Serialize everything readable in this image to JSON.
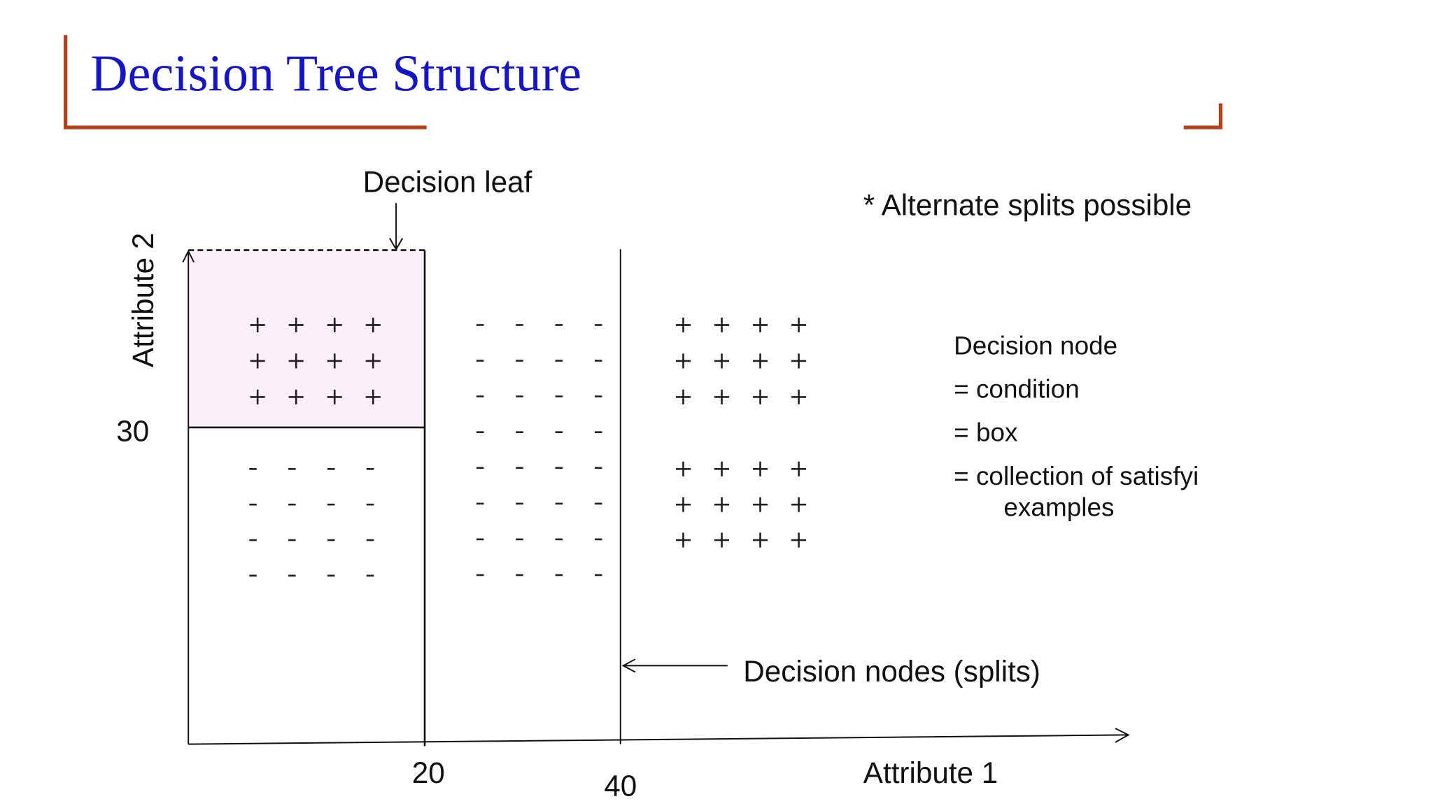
{
  "slide": {
    "title": "Decision Tree Structure",
    "title_color": "#1414c8",
    "accent_color": "#b5401a"
  },
  "diagram": {
    "leaf_label": "Decision leaf",
    "note": "* Alternate splits possible",
    "y_axis_label": "Attribute 2",
    "x_axis_label": "Attribute 1",
    "y_tick": "30",
    "x_ticks": [
      "20",
      "40"
    ],
    "splits_label": "Decision nodes (splits)",
    "leaf_fill": "#fcf0fa",
    "node_definition": {
      "heading": "Decision node",
      "lines": [
        "= condition",
        "= box",
        "= collection of satisfyi",
        "examples"
      ]
    },
    "regions": [
      {
        "name": "leaf-region",
        "symbol": "+",
        "rows": 3,
        "cols": 4
      },
      {
        "name": "lower-left-region",
        "symbol": "-",
        "rows": 4,
        "cols": 4
      },
      {
        "name": "middle-region",
        "symbol": "-",
        "rows": 8,
        "cols": 4
      },
      {
        "name": "right-upper-region",
        "symbol": "+",
        "rows": 3,
        "cols": 4
      },
      {
        "name": "right-lower-region",
        "symbol": "+",
        "rows": 3,
        "cols": 4
      }
    ]
  }
}
